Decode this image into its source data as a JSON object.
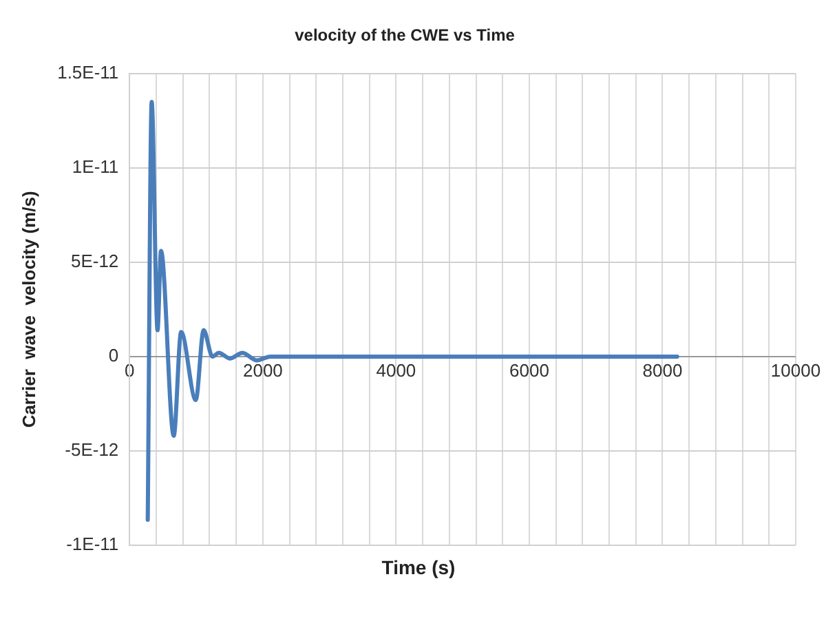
{
  "chart_data": {
    "type": "line",
    "title": "velocity of the CWE vs Time",
    "xlabel": "Time (s)",
    "ylabel": "Carrier  wave  velocity (m/s)",
    "series": [
      {
        "color": "#4a7ebb",
        "x": [
          272,
          331,
          419,
          471,
          662,
          773,
          993,
          1111,
          1243,
          1340,
          1509,
          1693,
          1906,
          2112,
          8220
        ],
        "values": [
          -8.65e-12,
          1.35e-11,
          1.4e-12,
          5.6e-12,
          -4.2e-12,
          1.3e-12,
          -2.3e-12,
          1.4e-12,
          0,
          2e-13,
          -1e-13,
          2e-13,
          -2e-13,
          0,
          0
        ]
      }
    ],
    "xlim": [
      0,
      10000
    ],
    "xticks": [
      0,
      {
        "value": 400,
        "label": null
      },
      {
        "value": 800,
        "label": null
      },
      {
        "value": 1200,
        "label": null
      },
      {
        "value": 1600,
        "label": null
      },
      2000,
      {
        "value": 2400,
        "label": null
      },
      {
        "value": 2800,
        "label": null
      },
      {
        "value": 3200,
        "label": null
      },
      {
        "value": 3600,
        "label": null
      },
      4000,
      {
        "value": 4400,
        "label": null
      },
      {
        "value": 4800,
        "label": null
      },
      {
        "value": 5200,
        "label": null
      },
      {
        "value": 5600,
        "label": null
      },
      6000,
      {
        "value": 6400,
        "label": null
      },
      {
        "value": 6800,
        "label": null
      },
      {
        "value": 7200,
        "label": null
      },
      {
        "value": 7600,
        "label": null
      },
      8000,
      {
        "value": 8400,
        "label": null
      },
      {
        "value": 8800,
        "label": null
      },
      {
        "value": 9200,
        "label": null
      },
      {
        "value": 9600,
        "label": null
      },
      10000
    ],
    "ylim": [
      -1e-11,
      1.5e-11
    ],
    "yticks": [
      {
        "value": -1e-11,
        "label": "-1E-11"
      },
      {
        "value": -5e-12,
        "label": "-5E-12"
      },
      {
        "value": 0,
        "label": "0"
      },
      {
        "value": 5e-12,
        "label": "5E-12"
      },
      {
        "value": 1e-11,
        "label": "1E-11"
      },
      {
        "value": 1.5e-11,
        "label": "1.5E-11"
      }
    ],
    "grid": true,
    "legend": false,
    "marker": "none",
    "line_style": "solid"
  }
}
